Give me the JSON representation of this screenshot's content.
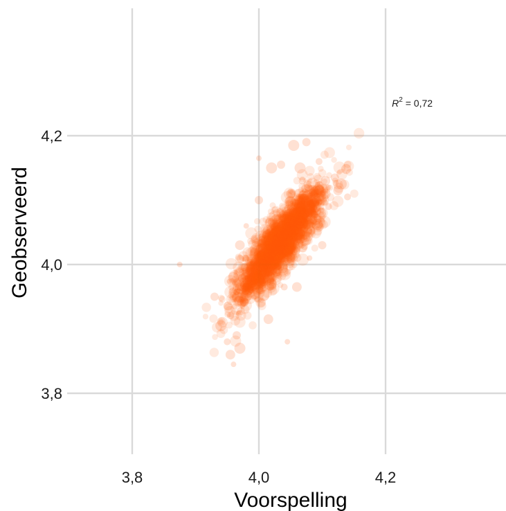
{
  "chart_data": {
    "type": "scatter",
    "title": "",
    "xlabel": "Voorspelling",
    "ylabel": "Geobserveerd",
    "xlim": [
      3.7,
      4.38
    ],
    "ylim": [
      3.7,
      4.4
    ],
    "x_ticks": [
      3.8,
      4.0,
      4.2
    ],
    "y_ticks": [
      3.8,
      4.0,
      4.2
    ],
    "x_tick_labels": [
      "3,8",
      "4,0",
      "4,2"
    ],
    "y_tick_labels": [
      "3,8",
      "4,0",
      "4,2"
    ],
    "grid": true,
    "legend": "none",
    "annotation": {
      "prefix": "R",
      "superscript": "2",
      "suffix": " = 0,72",
      "x": 4.21,
      "y": 4.245
    },
    "point_color": "#ff5a0a",
    "point_opacity": 0.13,
    "series": [
      {
        "x": [
          3.875,
          3.93,
          3.94,
          3.95,
          3.955,
          3.96,
          3.965,
          3.97,
          3.975,
          3.98,
          3.985,
          3.99,
          3.995,
          4.0,
          4.005,
          4.012,
          4.02,
          4.03,
          4.045,
          4.06,
          4.07,
          4.08,
          4.09,
          4.1,
          4.105,
          4.11,
          4.12,
          4.13,
          4.14,
          3.97,
          3.98,
          4.0,
          4.02,
          4.04,
          4.06,
          4.08,
          4.1,
          3.96,
          3.99,
          4.03,
          4.05,
          4.07,
          4.09,
          4.11,
          4.125,
          4.0,
          4.035,
          4.065,
          4.095,
          4.015,
          4.045,
          4.075,
          4.055
        ],
        "y": [
          4.0,
          3.95,
          3.905,
          3.88,
          3.86,
          3.845,
          3.89,
          3.87,
          3.94,
          3.955,
          3.965,
          3.97,
          3.98,
          3.99,
          4.0,
          4.01,
          4.02,
          4.03,
          4.05,
          4.06,
          4.07,
          4.08,
          4.09,
          4.11,
          4.13,
          4.12,
          4.135,
          4.125,
          4.105,
          4.03,
          4.06,
          4.1,
          4.15,
          3.965,
          3.965,
          4.01,
          4.03,
          3.98,
          3.97,
          4.0,
          4.02,
          4.04,
          4.07,
          4.09,
          4.115,
          4.165,
          4.155,
          4.15,
          4.16,
          3.915,
          3.88,
          4.19,
          4.185
        ]
      }
    ]
  }
}
